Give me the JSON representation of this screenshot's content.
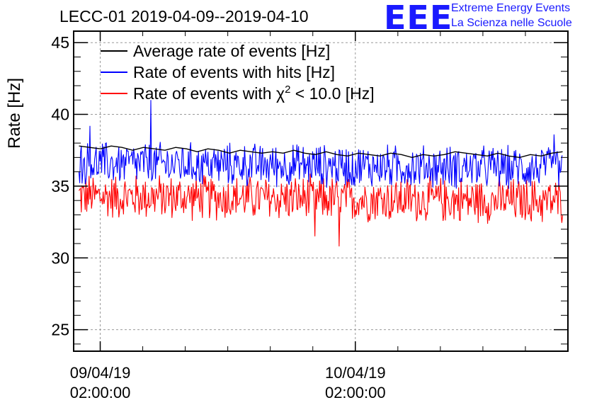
{
  "logo": {
    "mark": "EEE",
    "line1": "Extreme Energy Events",
    "line2": "La Scienza nelle Scuole"
  },
  "chart_data": {
    "type": "line",
    "title": "LECC-01 2019-04-09--2019-04-10",
    "ylabel": "Rate [Hz]",
    "xlabel": "",
    "ylim": [
      23.5,
      45.8
    ],
    "yticks": [
      25,
      30,
      35,
      40,
      45
    ],
    "grid": true,
    "legend_position": "top-left",
    "x_start": "2019-04-08 23:30:00",
    "x_end": "2019-04-10 22:00:00",
    "xticks": [
      {
        "x": "2019-04-09 02:00:00",
        "date": "09/04/19",
        "time": "02:00:00"
      },
      {
        "x": "2019-04-10 02:00:00",
        "date": "10/04/19",
        "time": "02:00:00"
      }
    ],
    "data_x_start": "2019-04-09 00:00:00",
    "data_x_end": "2019-04-10 21:30:00",
    "series": [
      {
        "name": "Average rate of events [Hz]",
        "color": "#000000",
        "mean": 37.4,
        "amplitude": 0.3,
        "values": [
          37.8,
          37.7,
          37.6,
          37.8,
          37.7,
          37.5,
          37.7,
          37.6,
          37.5,
          37.7,
          37.6,
          37.4,
          37.6,
          37.5,
          37.3,
          37.5,
          37.4,
          37.3,
          37.4,
          37.3,
          37.5,
          37.3,
          37.2,
          37.4,
          37.2,
          37.1,
          37.3,
          37.2,
          37.1,
          37.3,
          37.2,
          37.0,
          37.2,
          37.1,
          37.2,
          37.4,
          37.3,
          37.2,
          37.1,
          37.3,
          37.1,
          37.0,
          37.2,
          37.1,
          37.3,
          37.4
        ]
      },
      {
        "name": "Rate of events with hits [Hz]",
        "color": "#0000ff",
        "mean": 36.6,
        "amplitude": 1.7,
        "peaks": [
          {
            "x": "2019-04-09 06:45:00",
            "y": 41.0
          },
          {
            "x": "2019-04-09 01:00:00",
            "y": 39.2
          },
          {
            "x": "2019-04-10 20:40:00",
            "y": 38.6
          }
        ]
      },
      {
        "name": "Rate of events with χ² < 10.0 [Hz]",
        "legend_prefix": "Rate of events with χ",
        "legend_sup": "2",
        "legend_suffix": " < 10.0 [Hz]",
        "color": "#ff0000",
        "mean": 34.3,
        "amplitude": 1.8,
        "dips": [
          {
            "x": "2019-04-10 00:30:00",
            "y": 30.8
          },
          {
            "x": "2019-04-09 22:10:00",
            "y": 31.5
          }
        ]
      }
    ]
  }
}
